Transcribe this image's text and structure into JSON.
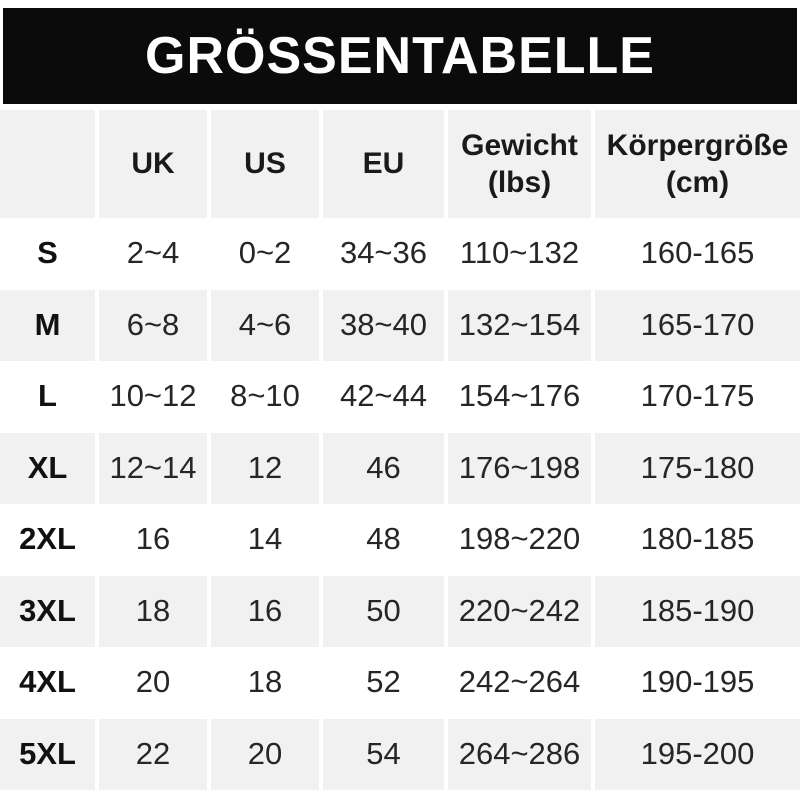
{
  "title": "GRÖSSENTABELLE",
  "colors": {
    "banner_bg": "#0b0b0b",
    "banner_text": "#ffffff",
    "stripe_bg": "#f1f1f1",
    "row_bg": "#ffffff",
    "text": "#262626"
  },
  "table": {
    "columns": [
      {
        "id": "size",
        "line1": "",
        "line2": ""
      },
      {
        "id": "uk",
        "line1": "UK",
        "line2": ""
      },
      {
        "id": "us",
        "line1": "US",
        "line2": ""
      },
      {
        "id": "eu",
        "line1": "EU",
        "line2": ""
      },
      {
        "id": "weight",
        "line1": "Gewicht",
        "line2": "(lbs)"
      },
      {
        "id": "height",
        "line1": "Körpergröße",
        "line2": "(cm)"
      }
    ],
    "rows": [
      {
        "size": "S",
        "uk": "2~4",
        "us": "0~2",
        "eu": "34~36",
        "weight": "110~132",
        "height": "160-165"
      },
      {
        "size": "M",
        "uk": "6~8",
        "us": "4~6",
        "eu": "38~40",
        "weight": "132~154",
        "height": "165-170"
      },
      {
        "size": "L",
        "uk": "10~12",
        "us": "8~10",
        "eu": "42~44",
        "weight": "154~176",
        "height": "170-175"
      },
      {
        "size": "XL",
        "uk": "12~14",
        "us": "12",
        "eu": "46",
        "weight": "176~198",
        "height": "175-180"
      },
      {
        "size": "2XL",
        "uk": "16",
        "us": "14",
        "eu": "48",
        "weight": "198~220",
        "height": "180-185"
      },
      {
        "size": "3XL",
        "uk": "18",
        "us": "16",
        "eu": "50",
        "weight": "220~242",
        "height": "185-190"
      },
      {
        "size": "4XL",
        "uk": "20",
        "us": "18",
        "eu": "52",
        "weight": "242~264",
        "height": "190-195"
      },
      {
        "size": "5XL",
        "uk": "22",
        "us": "20",
        "eu": "54",
        "weight": "264~286",
        "height": "195-200"
      }
    ]
  }
}
